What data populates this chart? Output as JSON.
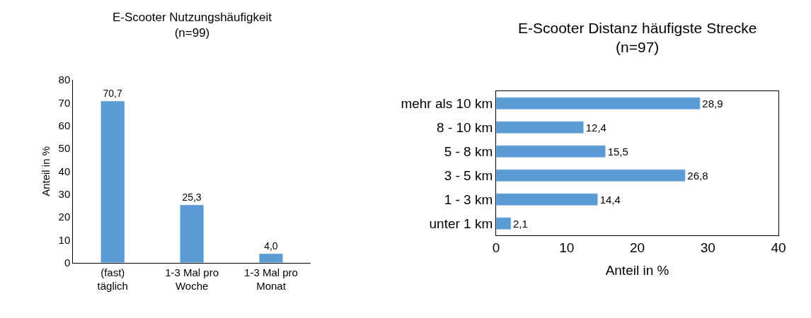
{
  "chart_data": [
    {
      "type": "bar",
      "title": "E-Scooter Nutzungshäufigkeit",
      "subtitle": "(n=99)",
      "ylabel": "Anteil in %",
      "categories": [
        "(fast) täglich",
        "1-3 Mal pro Woche",
        "1-3 Mal pro Monat"
      ],
      "values": [
        70.7,
        25.3,
        4.0
      ],
      "value_labels": [
        "70,7",
        "25,3",
        "4,0"
      ],
      "color": "#5b9bd5",
      "ylim": [
        0,
        80
      ],
      "yticks": [
        0,
        10,
        20,
        30,
        40,
        50,
        60,
        70,
        80
      ]
    },
    {
      "type": "bar",
      "orientation": "horizontal",
      "title": "E-Scooter Distanz häufigste Strecke",
      "subtitle": "(n=97)",
      "xlabel": "Anteil in %",
      "categories": [
        "mehr als 10 km",
        "8 - 10 km",
        "5 - 8 km",
        "3 - 5 km",
        "1 - 3 km",
        "unter 1 km"
      ],
      "values": [
        28.9,
        12.4,
        15.5,
        26.8,
        14.4,
        2.1
      ],
      "value_labels": [
        "28,9",
        "12,4",
        "15,5",
        "26,8",
        "14,4",
        "2,1"
      ],
      "color": "#5b9bd5",
      "xlim": [
        0,
        40
      ],
      "xticks": [
        0,
        10,
        20,
        30,
        40
      ]
    }
  ]
}
